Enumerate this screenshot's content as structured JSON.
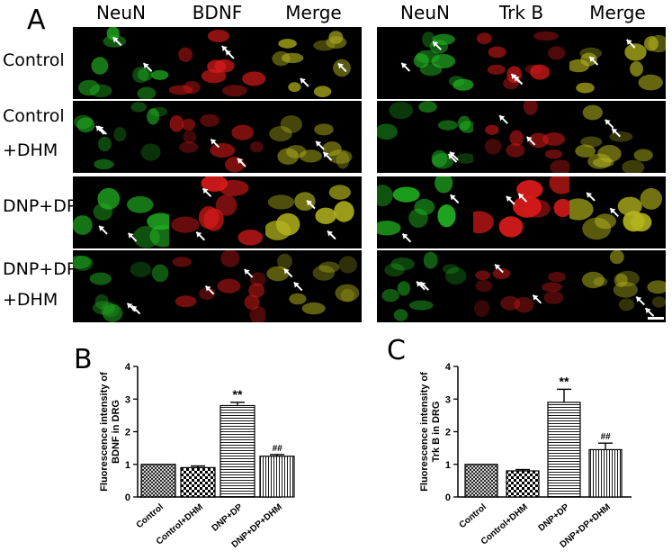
{
  "panel_labels": {
    "a": "A",
    "b": "B",
    "c": "C"
  },
  "micro_columns": [
    "NeuN",
    "BDNF",
    "Merge",
    "NeuN",
    "Trk B",
    "Merge"
  ],
  "micro_rows": [
    [
      "Control"
    ],
    [
      "Control",
      "+DHM"
    ],
    [
      "DNP+DP"
    ],
    [
      "DNP+DP",
      "+DHM"
    ]
  ],
  "colors": {
    "neun": "#22b422",
    "red": "#d81a1a",
    "merge": "#b4b41e",
    "bar_fill": "#ffffff",
    "axis": "#000000"
  },
  "chart_data": [
    {
      "type": "bar",
      "categories": [
        "Control",
        "Control+DHM",
        "DNP+DP",
        "DNP+DP+DHM"
      ],
      "values": [
        1.0,
        0.9,
        2.8,
        1.25
      ],
      "errors": [
        0.0,
        0.05,
        0.1,
        0.05
      ],
      "annotations": [
        "",
        "",
        "**",
        "##"
      ],
      "patterns": [
        "crosshatch",
        "checker",
        "horizontal",
        "vertical"
      ],
      "title": "",
      "xlabel": "",
      "ylabel_lines": [
        "Fluorescence intensity of",
        "BDNF  in  DRG"
      ],
      "ylim": [
        0,
        4
      ],
      "yticks": [
        "0",
        "1",
        "2",
        "3",
        "4"
      ],
      "grid": false,
      "legend": "none"
    },
    {
      "type": "bar",
      "categories": [
        "Control",
        "Control+DHM",
        "DNP+DP",
        "DNP+DP+DHM"
      ],
      "values": [
        1.0,
        0.8,
        2.9,
        1.45
      ],
      "errors": [
        0.0,
        0.04,
        0.4,
        0.2
      ],
      "annotations": [
        "",
        "",
        "**",
        "##"
      ],
      "patterns": [
        "crosshatch",
        "checker",
        "horizontal",
        "vertical"
      ],
      "title": "",
      "xlabel": "",
      "ylabel_lines": [
        "Fluorescence intensity of",
        "Trk B  in  DRG"
      ],
      "ylim": [
        0,
        4
      ],
      "yticks": [
        "0",
        "1",
        "2",
        "3",
        "4"
      ],
      "grid": false,
      "legend": "none"
    }
  ]
}
